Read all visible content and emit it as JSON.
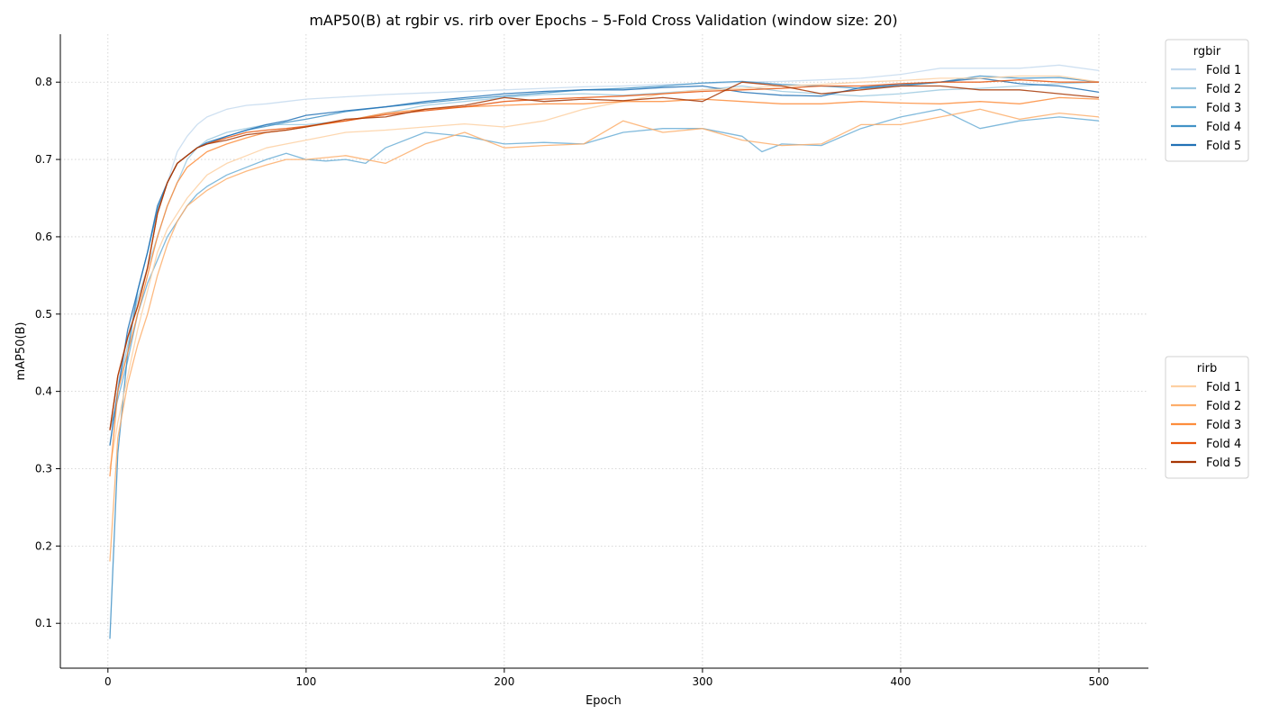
{
  "chart_data": {
    "type": "line",
    "title": "mAP50(B) at rgbir vs. rirb over Epochs – 5-Fold Cross Validation (window size: 20)",
    "xlabel": "Epoch",
    "ylabel": "mAP50(B)",
    "xlim": [
      -24,
      525
    ],
    "ylim": [
      0.042,
      0.862
    ],
    "x_ticks": [
      0,
      100,
      200,
      300,
      400,
      500
    ],
    "y_ticks": [
      0.1,
      0.2,
      0.3,
      0.4,
      0.5,
      0.6,
      0.7,
      0.8
    ],
    "grid": true,
    "legend_placement": "outside-right",
    "series_groups": [
      {
        "name": "rgbir",
        "legend_position": "upper-right",
        "series": [
          {
            "name": "Fold 1",
            "color": "#c6dbef",
            "x": [
              1,
              5,
              10,
              15,
              20,
              25,
              30,
              35,
              40,
              45,
              50,
              60,
              70,
              80,
              90,
              100,
              120,
              140,
              160,
              180,
              200,
              220,
              240,
              260,
              280,
              300,
              320,
              340,
              360,
              380,
              400,
              420,
              440,
              460,
              480,
              500
            ],
            "y": [
              0.35,
              0.41,
              0.47,
              0.53,
              0.58,
              0.63,
              0.67,
              0.71,
              0.73,
              0.745,
              0.755,
              0.765,
              0.77,
              0.772,
              0.775,
              0.778,
              0.781,
              0.784,
              0.786,
              0.788,
              0.79,
              0.792,
              0.794,
              0.795,
              0.797,
              0.798,
              0.8,
              0.801,
              0.803,
              0.805,
              0.81,
              0.818,
              0.818,
              0.818,
              0.822,
              0.815
            ]
          },
          {
            "name": "Fold 2",
            "color": "#9ecae1",
            "x": [
              1,
              5,
              10,
              15,
              20,
              25,
              30,
              35,
              40,
              45,
              50,
              60,
              70,
              80,
              90,
              100,
              120,
              140,
              160,
              180,
              200,
              220,
              240,
              260,
              280,
              300,
              320,
              340,
              360,
              380,
              400,
              420,
              440,
              460,
              480,
              500
            ],
            "y": [
              0.33,
              0.4,
              0.46,
              0.52,
              0.56,
              0.6,
              0.64,
              0.67,
              0.7,
              0.715,
              0.725,
              0.735,
              0.74,
              0.745,
              0.745,
              0.745,
              0.75,
              0.76,
              0.77,
              0.775,
              0.78,
              0.784,
              0.785,
              0.783,
              0.786,
              0.79,
              0.795,
              0.788,
              0.785,
              0.782,
              0.785,
              0.79,
              0.792,
              0.795,
              0.798,
              0.8
            ]
          },
          {
            "name": "Fold 3",
            "color": "#6baed6",
            "x": [
              1,
              5,
              10,
              15,
              20,
              25,
              30,
              35,
              40,
              45,
              50,
              60,
              70,
              80,
              90,
              100,
              110,
              120,
              130,
              140,
              160,
              180,
              200,
              220,
              240,
              260,
              280,
              300,
              320,
              330,
              340,
              360,
              380,
              400,
              420,
              440,
              460,
              480,
              500
            ],
            "y": [
              0.35,
              0.39,
              0.44,
              0.5,
              0.54,
              0.57,
              0.6,
              0.62,
              0.64,
              0.655,
              0.665,
              0.68,
              0.69,
              0.7,
              0.708,
              0.7,
              0.698,
              0.7,
              0.695,
              0.715,
              0.735,
              0.73,
              0.72,
              0.722,
              0.72,
              0.735,
              0.74,
              0.74,
              0.73,
              0.71,
              0.72,
              0.718,
              0.74,
              0.755,
              0.765,
              0.74,
              0.75,
              0.755,
              0.75
            ]
          },
          {
            "name": "Fold 4",
            "color": "#4292c6",
            "x": [
              1,
              5,
              10,
              15,
              20,
              25,
              30,
              35,
              40,
              45,
              50,
              60,
              70,
              80,
              90,
              100,
              120,
              140,
              160,
              180,
              200,
              220,
              240,
              260,
              280,
              300,
              320,
              340,
              360,
              380,
              400,
              420,
              440,
              460,
              480,
              500
            ],
            "y": [
              0.08,
              0.32,
              0.45,
              0.53,
              0.58,
              0.635,
              0.67,
              0.695,
              0.705,
              0.715,
              0.72,
              0.73,
              0.738,
              0.743,
              0.748,
              0.752,
              0.762,
              0.768,
              0.773,
              0.778,
              0.782,
              0.786,
              0.79,
              0.792,
              0.795,
              0.799,
              0.801,
              0.797,
              0.795,
              0.792,
              0.795,
              0.8,
              0.808,
              0.805,
              0.806,
              0.8
            ]
          },
          {
            "name": "Fold 5",
            "color": "#2171b5",
            "x": [
              1,
              5,
              10,
              15,
              20,
              25,
              30,
              35,
              40,
              45,
              50,
              60,
              70,
              80,
              90,
              100,
              120,
              140,
              160,
              180,
              200,
              220,
              240,
              260,
              280,
              300,
              320,
              340,
              360,
              380,
              400,
              420,
              440,
              460,
              480,
              500
            ],
            "y": [
              0.33,
              0.4,
              0.48,
              0.53,
              0.58,
              0.64,
              0.67,
              0.695,
              0.705,
              0.715,
              0.722,
              0.73,
              0.738,
              0.745,
              0.75,
              0.757,
              0.763,
              0.768,
              0.775,
              0.78,
              0.785,
              0.788,
              0.79,
              0.79,
              0.793,
              0.795,
              0.787,
              0.783,
              0.782,
              0.793,
              0.797,
              0.8,
              0.805,
              0.798,
              0.795,
              0.787
            ]
          }
        ]
      },
      {
        "name": "rirb",
        "legend_position": "center-right",
        "series": [
          {
            "name": "Fold 1",
            "color": "#fdd0a2",
            "x": [
              1,
              5,
              10,
              15,
              20,
              25,
              30,
              35,
              40,
              45,
              50,
              60,
              70,
              80,
              90,
              100,
              120,
              140,
              160,
              180,
              200,
              220,
              240,
              260,
              280,
              300,
              320,
              340,
              360,
              380,
              400,
              420,
              440,
              460,
              480,
              500
            ],
            "y": [
              0.3,
              0.36,
              0.42,
              0.48,
              0.53,
              0.58,
              0.61,
              0.63,
              0.65,
              0.665,
              0.68,
              0.695,
              0.705,
              0.715,
              0.72,
              0.725,
              0.735,
              0.738,
              0.742,
              0.746,
              0.742,
              0.75,
              0.765,
              0.775,
              0.785,
              0.79,
              0.792,
              0.795,
              0.797,
              0.8,
              0.802,
              0.805,
              0.805,
              0.808,
              0.808,
              0.8
            ]
          },
          {
            "name": "Fold 2",
            "color": "#fdae6b",
            "x": [
              1,
              5,
              10,
              15,
              20,
              25,
              30,
              35,
              40,
              45,
              50,
              60,
              70,
              80,
              90,
              100,
              120,
              140,
              160,
              180,
              200,
              220,
              240,
              260,
              280,
              300,
              320,
              340,
              360,
              380,
              400,
              420,
              440,
              460,
              480,
              500
            ],
            "y": [
              0.18,
              0.34,
              0.41,
              0.46,
              0.5,
              0.55,
              0.59,
              0.62,
              0.64,
              0.65,
              0.66,
              0.675,
              0.685,
              0.693,
              0.7,
              0.7,
              0.705,
              0.695,
              0.72,
              0.735,
              0.715,
              0.718,
              0.72,
              0.75,
              0.735,
              0.74,
              0.725,
              0.718,
              0.72,
              0.745,
              0.745,
              0.755,
              0.765,
              0.752,
              0.76,
              0.755
            ]
          },
          {
            "name": "Fold 3",
            "color": "#fd8d3c",
            "x": [
              1,
              5,
              10,
              15,
              20,
              25,
              30,
              35,
              40,
              45,
              50,
              60,
              70,
              80,
              90,
              100,
              120,
              140,
              160,
              180,
              200,
              220,
              240,
              260,
              280,
              300,
              320,
              340,
              360,
              380,
              400,
              420,
              440,
              460,
              480,
              500
            ],
            "y": [
              0.29,
              0.4,
              0.45,
              0.5,
              0.55,
              0.6,
              0.64,
              0.67,
              0.69,
              0.7,
              0.71,
              0.72,
              0.728,
              0.735,
              0.738,
              0.742,
              0.75,
              0.76,
              0.765,
              0.768,
              0.77,
              0.772,
              0.772,
              0.775,
              0.775,
              0.778,
              0.775,
              0.772,
              0.772,
              0.775,
              0.773,
              0.772,
              0.775,
              0.772,
              0.78,
              0.778
            ]
          },
          {
            "name": "Fold 4",
            "color": "#e6550d",
            "x": [
              1,
              5,
              10,
              15,
              20,
              25,
              30,
              35,
              40,
              45,
              50,
              60,
              70,
              80,
              90,
              100,
              120,
              140,
              160,
              180,
              200,
              220,
              240,
              260,
              280,
              300,
              320,
              340,
              360,
              380,
              400,
              420,
              440,
              460,
              480,
              500
            ],
            "y": [
              0.35,
              0.42,
              0.47,
              0.51,
              0.56,
              0.63,
              0.67,
              0.695,
              0.705,
              0.715,
              0.72,
              0.728,
              0.735,
              0.738,
              0.74,
              0.743,
              0.75,
              0.758,
              0.763,
              0.768,
              0.775,
              0.778,
              0.78,
              0.782,
              0.785,
              0.788,
              0.79,
              0.792,
              0.795,
              0.795,
              0.798,
              0.8,
              0.8,
              0.803,
              0.8,
              0.8
            ]
          },
          {
            "name": "Fold 5",
            "color": "#a63603",
            "x": [
              1,
              5,
              10,
              15,
              20,
              25,
              30,
              35,
              40,
              45,
              50,
              60,
              70,
              80,
              90,
              100,
              120,
              140,
              160,
              180,
              200,
              220,
              240,
              260,
              280,
              300,
              320,
              340,
              360,
              380,
              400,
              420,
              440,
              460,
              480,
              500
            ],
            "y": [
              0.35,
              0.42,
              0.47,
              0.51,
              0.56,
              0.63,
              0.67,
              0.695,
              0.705,
              0.715,
              0.72,
              0.725,
              0.732,
              0.735,
              0.738,
              0.742,
              0.752,
              0.755,
              0.765,
              0.77,
              0.78,
              0.775,
              0.778,
              0.776,
              0.78,
              0.775,
              0.8,
              0.795,
              0.785,
              0.79,
              0.795,
              0.795,
              0.79,
              0.79,
              0.785,
              0.78
            ]
          }
        ]
      }
    ]
  }
}
